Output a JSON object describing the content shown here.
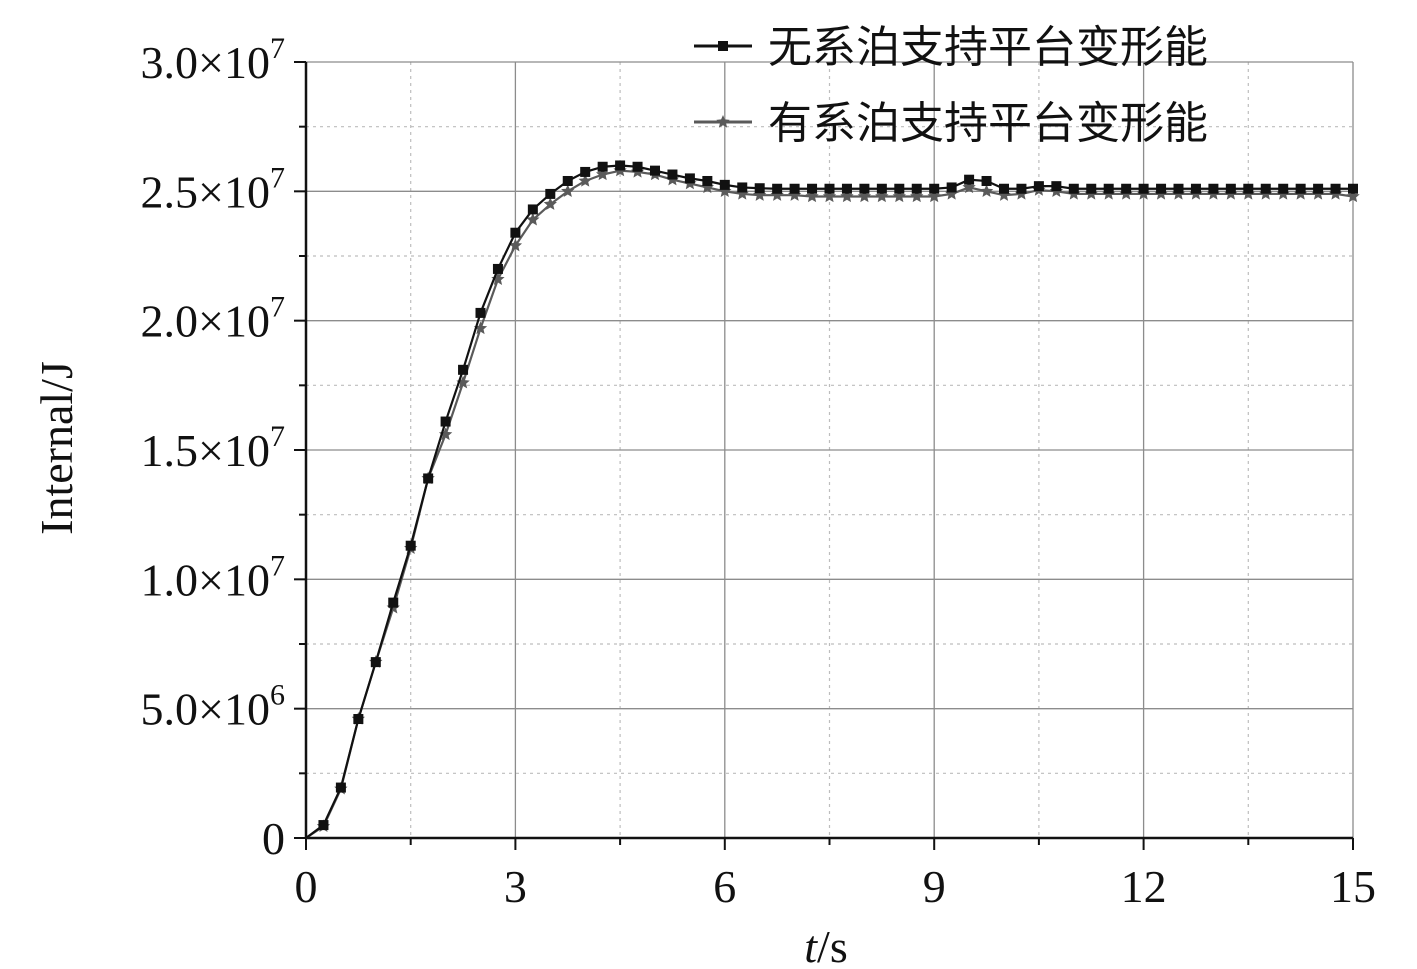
{
  "chart_data": {
    "type": "line",
    "xlabel_italic": "t",
    "xlabel_unit": "/s",
    "ylabel": "Internal/J",
    "xlim": [
      0,
      15
    ],
    "ylim": [
      0,
      30000000
    ],
    "xticks": [
      {
        "value": 0,
        "label": "0"
      },
      {
        "value": 3,
        "label": "3"
      },
      {
        "value": 6,
        "label": "6"
      },
      {
        "value": 9,
        "label": "9"
      },
      {
        "value": 12,
        "label": "12"
      },
      {
        "value": 15,
        "label": "15"
      }
    ],
    "yticks": [
      {
        "value": 0,
        "mant": "0",
        "exp": ""
      },
      {
        "value": 5000000,
        "mant": "5.0×10",
        "exp": "6"
      },
      {
        "value": 10000000,
        "mant": "1.0×10",
        "exp": "7"
      },
      {
        "value": 15000000,
        "mant": "1.5×10",
        "exp": "7"
      },
      {
        "value": 20000000,
        "mant": "2.0×10",
        "exp": "7"
      },
      {
        "value": 25000000,
        "mant": "2.5×10",
        "exp": "7"
      },
      {
        "value": 30000000,
        "mant": "3.0×10",
        "exp": "7"
      }
    ],
    "grid": true,
    "legend_position": "top-right",
    "series": [
      {
        "name": "无系泊支持平台变形能",
        "color": "#111111",
        "marker": "square",
        "points": [
          [
            0,
            0
          ],
          [
            0.25,
            500000
          ],
          [
            0.5,
            1950000
          ],
          [
            0.75,
            4600000
          ],
          [
            1.0,
            6800000
          ],
          [
            1.25,
            9100000
          ],
          [
            1.5,
            11300000
          ],
          [
            1.75,
            13900000
          ],
          [
            2.0,
            16100000
          ],
          [
            2.25,
            18100000
          ],
          [
            2.5,
            20300000
          ],
          [
            2.75,
            22000000
          ],
          [
            3.0,
            23400000
          ],
          [
            3.25,
            24300000
          ],
          [
            3.5,
            24900000
          ],
          [
            3.75,
            25400000
          ],
          [
            4.0,
            25750000
          ],
          [
            4.25,
            25950000
          ],
          [
            4.5,
            26000000
          ],
          [
            4.75,
            25950000
          ],
          [
            5.0,
            25800000
          ],
          [
            5.25,
            25650000
          ],
          [
            5.5,
            25500000
          ],
          [
            5.75,
            25400000
          ],
          [
            6.0,
            25250000
          ],
          [
            6.25,
            25150000
          ],
          [
            6.5,
            25120000
          ],
          [
            6.75,
            25100000
          ],
          [
            7.0,
            25100000
          ],
          [
            7.25,
            25100000
          ],
          [
            7.5,
            25100000
          ],
          [
            7.75,
            25100000
          ],
          [
            8.0,
            25100000
          ],
          [
            8.25,
            25100000
          ],
          [
            8.5,
            25100000
          ],
          [
            8.75,
            25100000
          ],
          [
            9.0,
            25100000
          ],
          [
            9.25,
            25150000
          ],
          [
            9.5,
            25450000
          ],
          [
            9.75,
            25400000
          ],
          [
            10.0,
            25100000
          ],
          [
            10.25,
            25100000
          ],
          [
            10.5,
            25200000
          ],
          [
            10.75,
            25200000
          ],
          [
            11.0,
            25100000
          ],
          [
            11.25,
            25100000
          ],
          [
            11.5,
            25100000
          ],
          [
            11.75,
            25100000
          ],
          [
            12.0,
            25100000
          ],
          [
            12.25,
            25100000
          ],
          [
            12.5,
            25100000
          ],
          [
            12.75,
            25100000
          ],
          [
            13.0,
            25100000
          ],
          [
            13.25,
            25100000
          ],
          [
            13.5,
            25100000
          ],
          [
            13.75,
            25100000
          ],
          [
            14.0,
            25100000
          ],
          [
            14.25,
            25100000
          ],
          [
            14.5,
            25100000
          ],
          [
            14.75,
            25100000
          ],
          [
            15.0,
            25100000
          ]
        ]
      },
      {
        "name": "有系泊支持平台变形能",
        "color": "#5a5a5a",
        "marker": "star",
        "points": [
          [
            0,
            0
          ],
          [
            0.25,
            450000
          ],
          [
            0.5,
            1900000
          ],
          [
            0.75,
            4600000
          ],
          [
            1.0,
            6800000
          ],
          [
            1.25,
            8900000
          ],
          [
            1.5,
            11200000
          ],
          [
            1.75,
            13900000
          ],
          [
            2.0,
            15600000
          ],
          [
            2.25,
            17600000
          ],
          [
            2.5,
            19700000
          ],
          [
            2.75,
            21600000
          ],
          [
            3.0,
            22900000
          ],
          [
            3.25,
            23900000
          ],
          [
            3.5,
            24500000
          ],
          [
            3.75,
            25000000
          ],
          [
            4.0,
            25400000
          ],
          [
            4.25,
            25650000
          ],
          [
            4.5,
            25800000
          ],
          [
            4.75,
            25750000
          ],
          [
            5.0,
            25650000
          ],
          [
            5.25,
            25450000
          ],
          [
            5.5,
            25300000
          ],
          [
            5.75,
            25150000
          ],
          [
            6.0,
            25000000
          ],
          [
            6.25,
            24900000
          ],
          [
            6.5,
            24850000
          ],
          [
            6.75,
            24850000
          ],
          [
            7.0,
            24850000
          ],
          [
            7.25,
            24800000
          ],
          [
            7.5,
            24800000
          ],
          [
            7.75,
            24800000
          ],
          [
            8.0,
            24800000
          ],
          [
            8.25,
            24800000
          ],
          [
            8.5,
            24800000
          ],
          [
            8.75,
            24800000
          ],
          [
            9.0,
            24800000
          ],
          [
            9.25,
            24900000
          ],
          [
            9.5,
            25150000
          ],
          [
            9.75,
            25000000
          ],
          [
            10.0,
            24850000
          ],
          [
            10.25,
            24900000
          ],
          [
            10.5,
            25050000
          ],
          [
            10.75,
            25000000
          ],
          [
            11.0,
            24900000
          ],
          [
            11.25,
            24900000
          ],
          [
            11.5,
            24900000
          ],
          [
            11.75,
            24900000
          ],
          [
            12.0,
            24900000
          ],
          [
            12.25,
            24900000
          ],
          [
            12.5,
            24900000
          ],
          [
            12.75,
            24900000
          ],
          [
            13.0,
            24900000
          ],
          [
            13.25,
            24900000
          ],
          [
            13.5,
            24900000
          ],
          [
            13.75,
            24900000
          ],
          [
            14.0,
            24900000
          ],
          [
            14.25,
            24900000
          ],
          [
            14.5,
            24900000
          ],
          [
            14.75,
            24900000
          ],
          [
            15.0,
            24800000
          ]
        ]
      }
    ]
  }
}
